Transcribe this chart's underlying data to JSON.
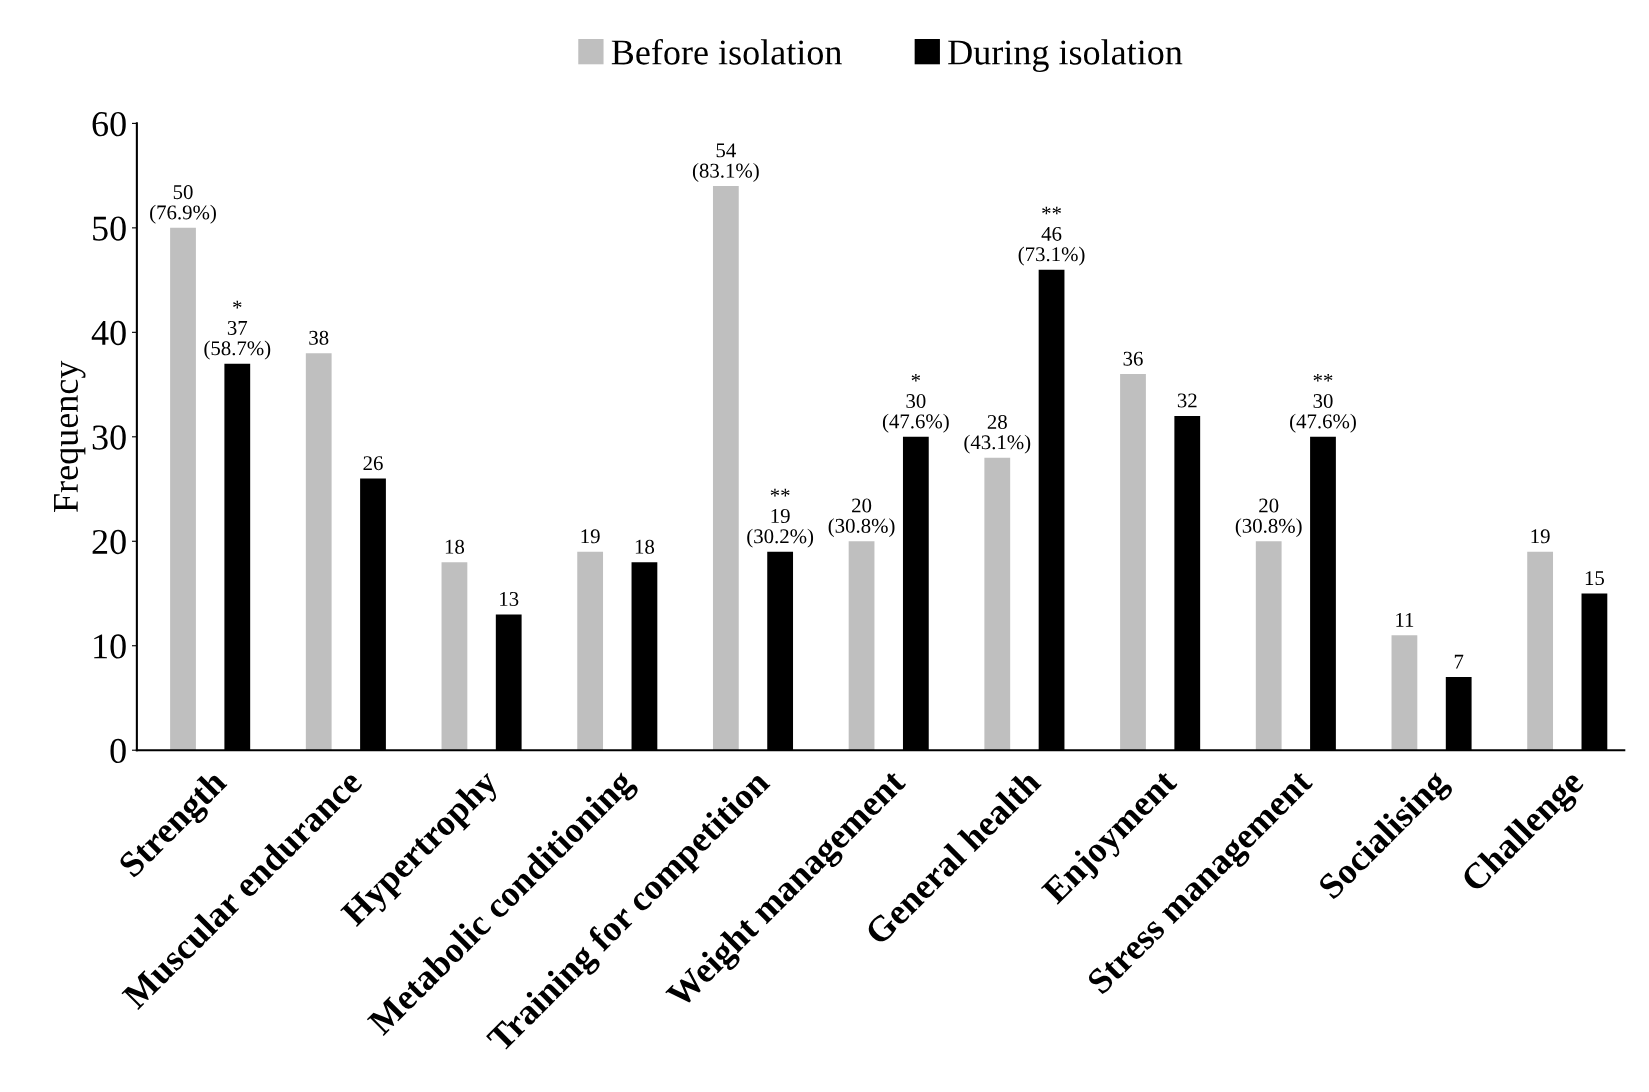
{
  "chart_data": {
    "type": "bar",
    "ylabel": "Frequency",
    "categories": [
      "Strength",
      "Muscular endurance",
      "Hypertrophy",
      "Metabolic conditioning",
      "Training for competition",
      "Weight management",
      "General health",
      "Enjoyment",
      "Stress management",
      "Socialising",
      "Challenge"
    ],
    "series": [
      {
        "name": "Before isolation",
        "color": "#bfbfbf",
        "values": [
          50,
          38,
          18,
          19,
          54,
          20,
          28,
          36,
          20,
          11,
          19
        ],
        "value_labels": [
          "50\n(76.9%)",
          "38",
          "18",
          "19",
          "54\n(83.1%)",
          "20\n(30.8%)",
          "28\n(43.1%)",
          "36",
          "20\n(30.8%)",
          "11",
          "19"
        ]
      },
      {
        "name": "During isolation",
        "color": "#000000",
        "values": [
          37,
          26,
          13,
          18,
          19,
          30,
          46,
          32,
          30,
          7,
          15
        ],
        "value_labels": [
          "*\n37\n(58.7%)",
          "26",
          "13",
          "18",
          "**\n19\n(30.2%)",
          "*\n30\n(47.6%)",
          "**\n46\n(73.1%)",
          "32",
          "**\n30\n(47.6%)",
          "7",
          "15"
        ]
      }
    ],
    "ylim": [
      0,
      60
    ],
    "yticks": [
      0,
      10,
      20,
      30,
      40,
      50,
      60
    ],
    "legend": "top"
  }
}
